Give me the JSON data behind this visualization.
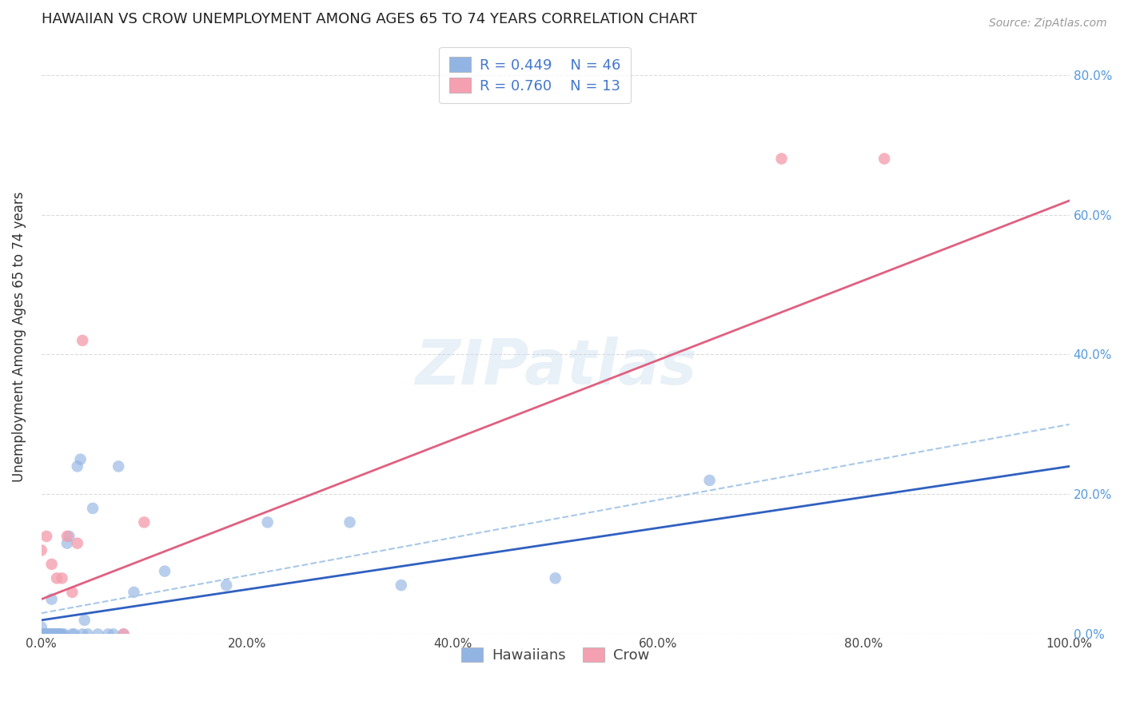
{
  "title": "HAWAIIAN VS CROW UNEMPLOYMENT AMONG AGES 65 TO 74 YEARS CORRELATION CHART",
  "source": "Source: ZipAtlas.com",
  "ylabel": "Unemployment Among Ages 65 to 74 years",
  "xlim": [
    0.0,
    1.0
  ],
  "ylim": [
    0.0,
    0.85
  ],
  "xticks": [
    0.0,
    0.2,
    0.4,
    0.6,
    0.8,
    1.0
  ],
  "xtick_labels": [
    "0.0%",
    "20.0%",
    "40.0%",
    "60.0%",
    "80.0%",
    "100.0%"
  ],
  "yticks": [
    0.0,
    0.2,
    0.4,
    0.6,
    0.8
  ],
  "right_ytick_labels": [
    "0.0%",
    "20.0%",
    "40.0%",
    "60.0%",
    "80.0%"
  ],
  "hawaiian_R": "0.449",
  "hawaiian_N": "46",
  "crow_R": "0.760",
  "crow_N": "13",
  "hawaiian_color": "#92b4e3",
  "crow_color": "#f4a0b0",
  "hawaiian_line_color": "#3060c0",
  "crow_line_color": "#e06080",
  "hawaiian_ci_color": "#a8c8e8",
  "background_color": "#ffffff",
  "grid_color": "#cccccc",
  "watermark": "ZIPatlas",
  "hawaiian_slope": 0.22,
  "hawaiian_intercept": 0.02,
  "crow_slope": 0.57,
  "crow_intercept": 0.05,
  "ci_slope": 0.27,
  "ci_intercept": 0.03,
  "hawaiian_x": [
    0.0,
    0.002,
    0.003,
    0.004,
    0.005,
    0.006,
    0.007,
    0.008,
    0.009,
    0.01,
    0.01,
    0.011,
    0.012,
    0.013,
    0.014,
    0.015,
    0.016,
    0.017,
    0.018,
    0.019,
    0.02,
    0.022,
    0.025,
    0.027,
    0.03,
    0.032,
    0.035,
    0.038,
    0.04,
    0.042,
    0.045,
    0.05,
    0.055,
    0.065,
    0.07,
    0.075,
    0.08,
    0.09,
    0.12,
    0.18,
    0.22,
    0.3,
    0.35,
    0.5,
    0.65,
    0.0
  ],
  "hawaiian_y": [
    0.01,
    0.0,
    0.0,
    0.0,
    0.0,
    0.0,
    0.0,
    0.0,
    0.0,
    0.0,
    0.05,
    0.0,
    0.0,
    0.0,
    0.0,
    0.0,
    0.0,
    0.0,
    0.0,
    0.0,
    0.0,
    0.0,
    0.13,
    0.14,
    0.0,
    0.0,
    0.24,
    0.25,
    0.0,
    0.02,
    0.0,
    0.18,
    0.0,
    0.0,
    0.0,
    0.24,
    0.0,
    0.06,
    0.09,
    0.07,
    0.16,
    0.16,
    0.07,
    0.08,
    0.22,
    0.0
  ],
  "crow_x": [
    0.0,
    0.005,
    0.01,
    0.015,
    0.02,
    0.025,
    0.03,
    0.035,
    0.04,
    0.08,
    0.1,
    0.72,
    0.82
  ],
  "crow_y": [
    0.12,
    0.14,
    0.1,
    0.08,
    0.08,
    0.14,
    0.06,
    0.13,
    0.42,
    0.0,
    0.16,
    0.68,
    0.68
  ],
  "title_fontsize": 13,
  "label_fontsize": 12,
  "tick_fontsize": 11,
  "legend_fontsize": 13
}
